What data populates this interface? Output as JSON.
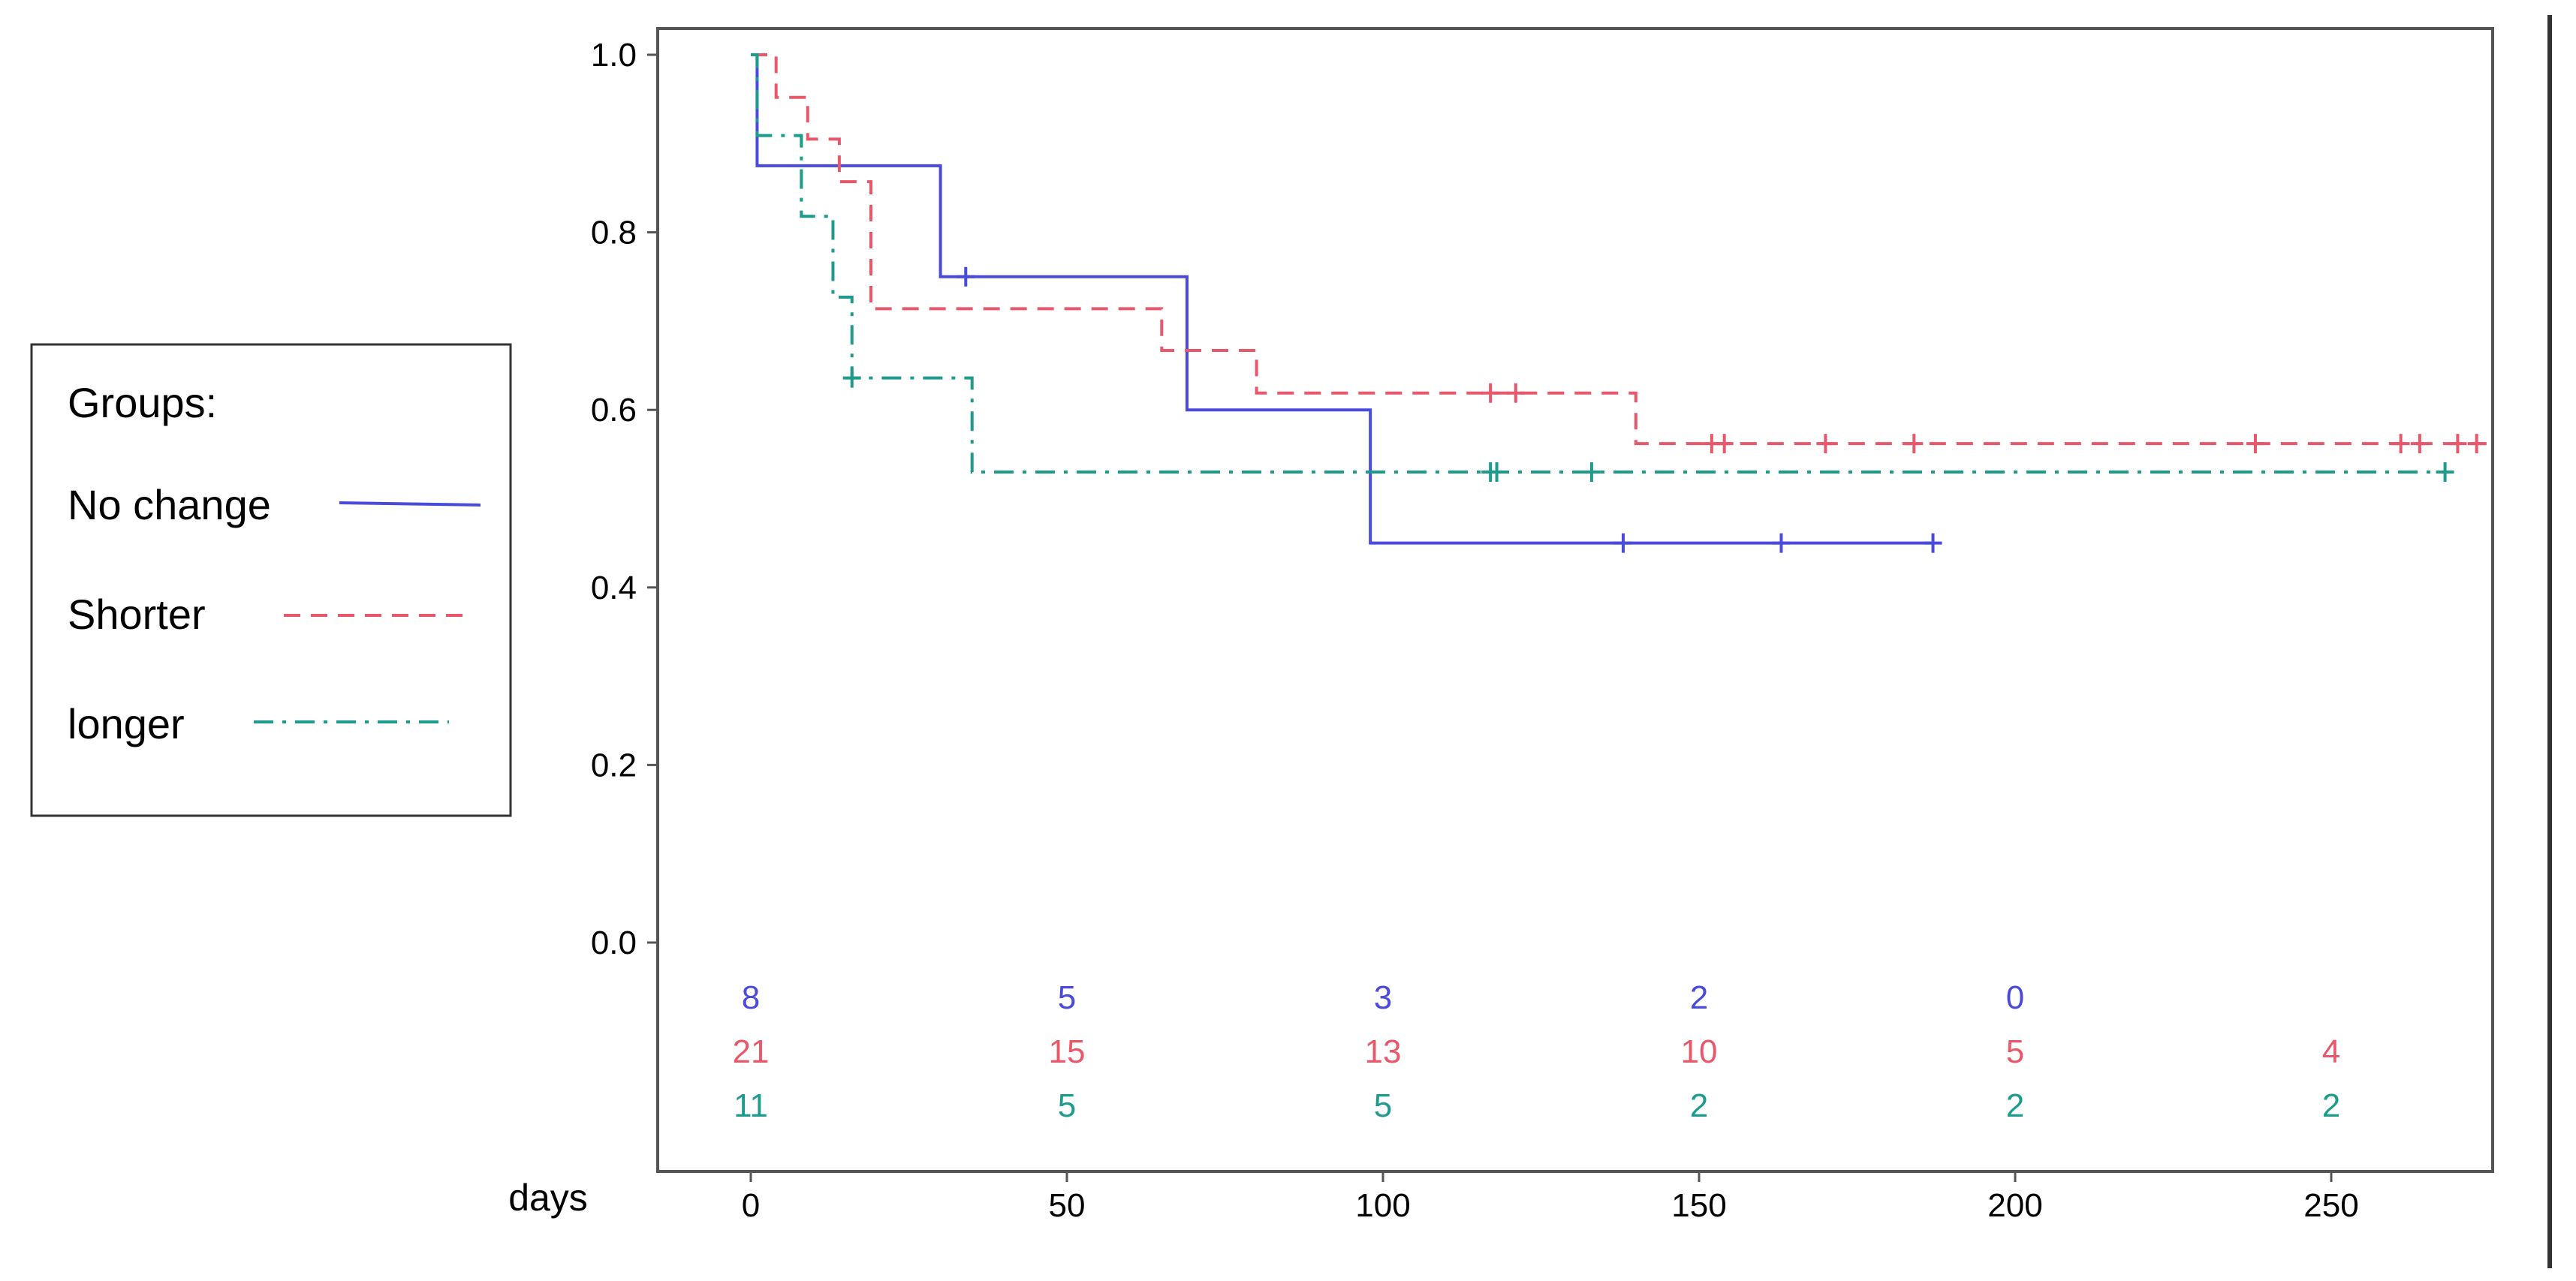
{
  "chart_data": {
    "type": "line",
    "subtype": "kaplan-meier step curves",
    "title": "",
    "xlabel": "days",
    "ylabel": "",
    "xlim": [
      -15,
      275
    ],
    "ylim": [
      -0.2,
      1.03
    ],
    "x_ticks": [
      0,
      50,
      100,
      150,
      200,
      250
    ],
    "y_ticks": [
      0.0,
      0.2,
      0.4,
      0.6,
      0.8,
      1.0
    ],
    "x_tick_labels": [
      "0",
      "50",
      "100",
      "150",
      "200",
      "250"
    ],
    "y_tick_labels": [
      "0.0",
      "0.2",
      "0.4",
      "0.6",
      "0.8",
      "1.0"
    ],
    "grid": false,
    "legend": {
      "title": "Groups:",
      "placement": "left, outside plot"
    },
    "series": [
      {
        "name": "No change",
        "color": "#4a4adb",
        "line_style": "solid",
        "steps": [
          [
            0,
            1.0
          ],
          [
            1,
            0.875
          ],
          [
            30,
            0.75
          ],
          [
            69,
            0.6
          ],
          [
            98,
            0.45
          ],
          [
            187,
            0.45
          ]
        ],
        "censored": [
          [
            34,
            0.75
          ],
          [
            138,
            0.45
          ],
          [
            163,
            0.45
          ],
          [
            187,
            0.45
          ]
        ]
      },
      {
        "name": "Shorter",
        "color": "#e8586a",
        "line_style": "dashed",
        "steps": [
          [
            0,
            1.0
          ],
          [
            4,
            0.952
          ],
          [
            9,
            0.905
          ],
          [
            14,
            0.857
          ],
          [
            19,
            0.714
          ],
          [
            65,
            0.667
          ],
          [
            80,
            0.619
          ],
          [
            140,
            0.562
          ],
          [
            275,
            0.562
          ]
        ],
        "censored": [
          [
            117,
            0.619
          ],
          [
            121,
            0.619
          ],
          [
            152,
            0.562
          ],
          [
            154,
            0.562
          ],
          [
            170,
            0.562
          ],
          [
            184,
            0.562
          ],
          [
            238,
            0.562
          ],
          [
            261,
            0.562
          ],
          [
            264,
            0.562
          ],
          [
            270,
            0.562
          ],
          [
            273,
            0.562
          ]
        ]
      },
      {
        "name": "longer",
        "color": "#1d9b8c",
        "line_style": "dash-dot",
        "steps": [
          [
            0,
            1.0
          ],
          [
            1,
            0.909
          ],
          [
            8,
            0.818
          ],
          [
            13,
            0.727
          ],
          [
            16,
            0.636
          ],
          [
            35,
            0.53
          ],
          [
            268,
            0.53
          ]
        ],
        "censored": [
          [
            16,
            0.636
          ],
          [
            117,
            0.53
          ],
          [
            118,
            0.53
          ],
          [
            133,
            0.53
          ],
          [
            268,
            0.53
          ]
        ]
      }
    ],
    "risk_table": {
      "x": [
        0,
        50,
        100,
        150,
        200,
        250
      ],
      "rows": [
        {
          "series": "No change",
          "counts": [
            "8",
            "5",
            "3",
            "2",
            "0",
            ""
          ]
        },
        {
          "series": "Shorter",
          "counts": [
            "21",
            "15",
            "13",
            "10",
            "5",
            "4"
          ]
        },
        {
          "series": "longer",
          "counts": [
            "11",
            "5",
            "5",
            "2",
            "2",
            "2"
          ]
        }
      ]
    }
  }
}
